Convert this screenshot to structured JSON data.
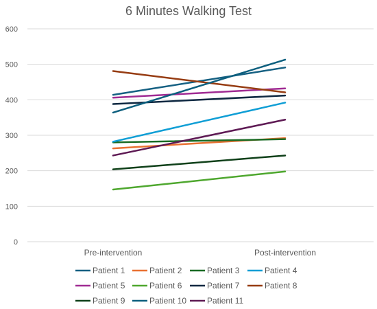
{
  "chart_data": {
    "type": "line",
    "title": "6 Minutes Walking Test",
    "xlabel": "",
    "ylabel": "",
    "categories": [
      "Pre-intervention",
      "Post-intervention"
    ],
    "ylim": [
      0,
      600
    ],
    "yticks": [
      0,
      100,
      200,
      300,
      400,
      500,
      600
    ],
    "grid": true,
    "legend_position": "bottom",
    "series": [
      {
        "name": "Patient 1",
        "values": [
          414,
          491
        ],
        "color": "#156082"
      },
      {
        "name": "Patient 2",
        "values": [
          263,
          292
        ],
        "color": "#E97132"
      },
      {
        "name": "Patient 3",
        "values": [
          280,
          289
        ],
        "color": "#196B24"
      },
      {
        "name": "Patient 4",
        "values": [
          282,
          392
        ],
        "color": "#0F9ED5"
      },
      {
        "name": "Patient 5",
        "values": [
          406,
          432
        ],
        "color": "#A02B93"
      },
      {
        "name": "Patient 6",
        "values": [
          147,
          198
        ],
        "color": "#4EA72E"
      },
      {
        "name": "Patient 7",
        "values": [
          388,
          412
        ],
        "color": "#0E2841"
      },
      {
        "name": "Patient 8",
        "values": [
          481,
          421
        ],
        "color": "#963C12"
      },
      {
        "name": "Patient 9",
        "values": [
          204,
          243
        ],
        "color": "#0F4019"
      },
      {
        "name": "Patient 10",
        "values": [
          364,
          513
        ],
        "color": "#0C5F7E"
      },
      {
        "name": "Patient 11",
        "values": [
          243,
          344
        ],
        "color": "#5E1A54"
      }
    ]
  }
}
